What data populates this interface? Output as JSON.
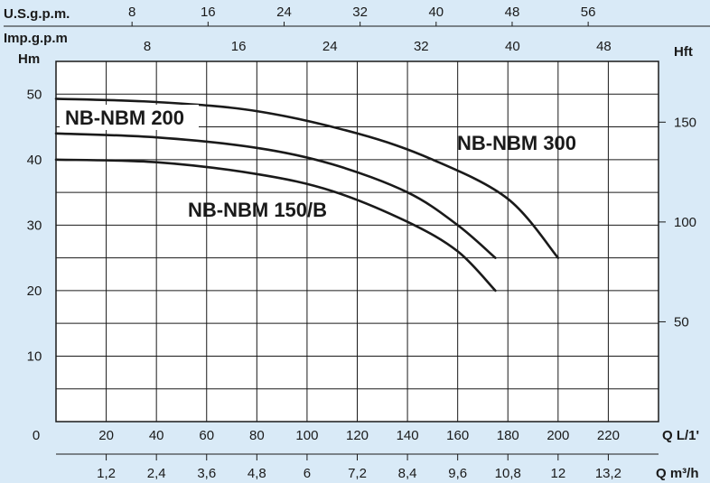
{
  "chart_data": {
    "type": "line",
    "title": "",
    "axes": {
      "top_usgpm": {
        "label": "U.S.g.p.m.",
        "ticks": [
          "8",
          "16",
          "24",
          "32",
          "40",
          "48",
          "56"
        ]
      },
      "top_impgpm": {
        "label": "Imp.g.p.m",
        "ticks": [
          "8",
          "16",
          "24",
          "32",
          "40",
          "48"
        ]
      },
      "left_head_m": {
        "label": "Hm",
        "ticks": [
          "10",
          "20",
          "30",
          "40",
          "50"
        ],
        "zero_label": "0",
        "range": [
          0,
          55
        ]
      },
      "right_head_ft": {
        "label": "Hft",
        "ticks": [
          "50",
          "100",
          "150"
        ]
      },
      "bottom_lpm": {
        "label": "Q L/1'",
        "ticks": [
          "20",
          "40",
          "60",
          "80",
          "100",
          "120",
          "140",
          "160",
          "180",
          "200",
          "220"
        ],
        "range": [
          0,
          240
        ]
      },
      "bottom_m3h": {
        "label": "Q m³/h",
        "ticks": [
          "1,2",
          "2,4",
          "3,6",
          "4,8",
          "6",
          "7,2",
          "8,4",
          "9,6",
          "10,8",
          "12",
          "13,2"
        ]
      }
    },
    "grid": true,
    "series": [
      {
        "name": "NB-NBM 300",
        "x": [
          0,
          40,
          80,
          120,
          150,
          180,
          200
        ],
        "y": [
          49.3,
          48.8,
          47.4,
          44.0,
          40.0,
          34.0,
          25.0
        ]
      },
      {
        "name": "NB-NBM 200",
        "x": [
          0,
          40,
          80,
          110,
          140,
          160,
          175
        ],
        "y": [
          44.0,
          43.4,
          41.8,
          39.3,
          35.0,
          30.0,
          25.0
        ]
      },
      {
        "name": "NB-NBM 150/B",
        "x": [
          0,
          40,
          80,
          110,
          140,
          160,
          175
        ],
        "y": [
          40.0,
          39.6,
          37.8,
          35.2,
          30.5,
          26.0,
          20.0
        ]
      }
    ]
  }
}
